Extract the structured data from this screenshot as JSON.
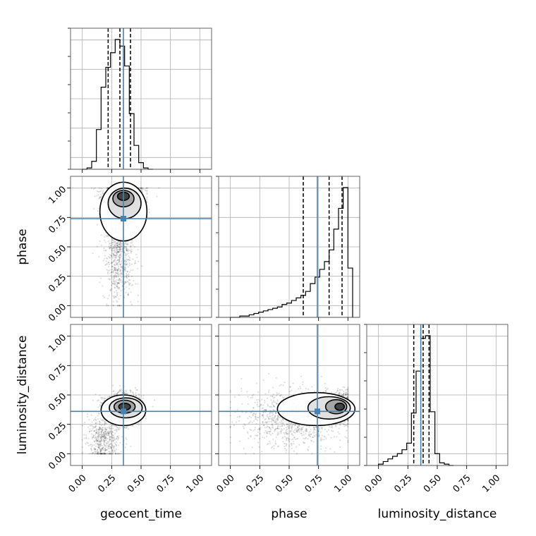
{
  "chart_data": {
    "type": "corner",
    "parameters": [
      {
        "name": "geocent_time",
        "label": "geocent_time",
        "truth": 0.35,
        "quantiles": [
          0.22,
          0.32,
          0.41
        ]
      },
      {
        "name": "phase",
        "label": "phase",
        "truth": 0.74,
        "quantiles": [
          0.62,
          0.84,
          0.95
        ]
      },
      {
        "name": "luminosity_distance",
        "label": "luminosity_distance",
        "truth": 0.36,
        "quantiles": [
          0.3,
          0.38,
          0.43
        ]
      }
    ],
    "axis_range": [
      -0.1,
      1.1
    ],
    "ticks": [
      0.0,
      0.25,
      0.5,
      0.75,
      1.0
    ],
    "tick_labels": [
      "0.00",
      "0.25",
      "0.50",
      "0.75",
      "1.00"
    ],
    "grid": true,
    "truth_color": "#4682b4",
    "hist_color": "#000000",
    "histograms": [
      {
        "param": "geocent_time",
        "bin_edges": [
          0.0,
          0.04,
          0.08,
          0.12,
          0.16,
          0.2,
          0.24,
          0.28,
          0.32,
          0.36,
          0.4,
          0.44,
          0.48,
          0.52,
          0.56,
          0.6
        ],
        "counts": [
          0.0,
          0.01,
          0.06,
          0.3,
          0.62,
          0.77,
          0.88,
          0.98,
          0.93,
          0.78,
          0.42,
          0.18,
          0.05,
          0.01,
          0.0
        ]
      },
      {
        "param": "phase",
        "bin_edges": [
          0.0,
          0.04,
          0.08,
          0.12,
          0.16,
          0.2,
          0.24,
          0.28,
          0.32,
          0.36,
          0.4,
          0.44,
          0.48,
          0.52,
          0.56,
          0.6,
          0.64,
          0.68,
          0.72,
          0.76,
          0.8,
          0.84,
          0.88,
          0.92,
          0.96,
          1.0,
          1.04
        ],
        "counts": [
          0.0,
          0.0,
          0.01,
          0.01,
          0.02,
          0.03,
          0.04,
          0.05,
          0.06,
          0.07,
          0.08,
          0.1,
          0.11,
          0.13,
          0.15,
          0.17,
          0.2,
          0.26,
          0.31,
          0.37,
          0.43,
          0.52,
          0.68,
          0.84,
          1.0,
          0.38
        ]
      },
      {
        "param": "luminosity_distance",
        "bin_edges": [
          0.0,
          0.04,
          0.08,
          0.12,
          0.16,
          0.2,
          0.24,
          0.28,
          0.32,
          0.36,
          0.4,
          0.44,
          0.48,
          0.52,
          0.56,
          0.6,
          0.64
        ],
        "counts": [
          0.01,
          0.03,
          0.05,
          0.07,
          0.09,
          0.12,
          0.17,
          0.4,
          0.72,
          0.97,
          0.99,
          0.41,
          0.09,
          0.02,
          0.01,
          0.0
        ]
      }
    ],
    "scatter_panels": [
      {
        "x": "geocent_time",
        "y": "phase",
        "density_centers": [
          {
            "x": 0.35,
            "y": 0.9,
            "sx": 0.08,
            "sy": 0.08,
            "weight": 0.7
          },
          {
            "x": 0.31,
            "y": 0.45,
            "sx": 0.06,
            "sy": 0.2,
            "weight": 0.3
          }
        ],
        "contours": [
          {
            "cx": 0.35,
            "cy": 0.93,
            "rx": 0.05,
            "ry": 0.035
          },
          {
            "cx": 0.35,
            "cy": 0.91,
            "rx": 0.09,
            "ry": 0.07
          },
          {
            "cx": 0.36,
            "cy": 0.87,
            "rx": 0.14,
            "ry": 0.13
          },
          {
            "cx": 0.35,
            "cy": 0.8,
            "rx": 0.2,
            "ry": 0.25
          }
        ]
      },
      {
        "x": "geocent_time",
        "y": "luminosity_distance",
        "density_centers": [
          {
            "x": 0.35,
            "y": 0.38,
            "sx": 0.07,
            "sy": 0.06,
            "weight": 0.8
          },
          {
            "x": 0.18,
            "y": 0.12,
            "sx": 0.07,
            "sy": 0.1,
            "weight": 0.2
          }
        ],
        "contours": [
          {
            "cx": 0.36,
            "cy": 0.4,
            "rx": 0.05,
            "ry": 0.03
          },
          {
            "cx": 0.36,
            "cy": 0.4,
            "rx": 0.09,
            "ry": 0.055
          },
          {
            "cx": 0.37,
            "cy": 0.39,
            "rx": 0.14,
            "ry": 0.085
          },
          {
            "cx": 0.35,
            "cy": 0.37,
            "rx": 0.19,
            "ry": 0.13
          }
        ]
      },
      {
        "x": "phase",
        "y": "luminosity_distance",
        "density_centers": [
          {
            "x": 0.9,
            "y": 0.39,
            "sx": 0.08,
            "sy": 0.06,
            "weight": 0.6
          },
          {
            "x": 0.55,
            "y": 0.3,
            "sx": 0.22,
            "sy": 0.12,
            "weight": 0.4
          }
        ],
        "contours": [
          {
            "cx": 0.93,
            "cy": 0.4,
            "rx": 0.04,
            "ry": 0.03
          },
          {
            "cx": 0.9,
            "cy": 0.4,
            "rx": 0.09,
            "ry": 0.06
          },
          {
            "cx": 0.84,
            "cy": 0.39,
            "rx": 0.18,
            "ry": 0.095
          },
          {
            "cx": 0.73,
            "cy": 0.38,
            "rx": 0.33,
            "ry": 0.14
          }
        ]
      }
    ]
  }
}
